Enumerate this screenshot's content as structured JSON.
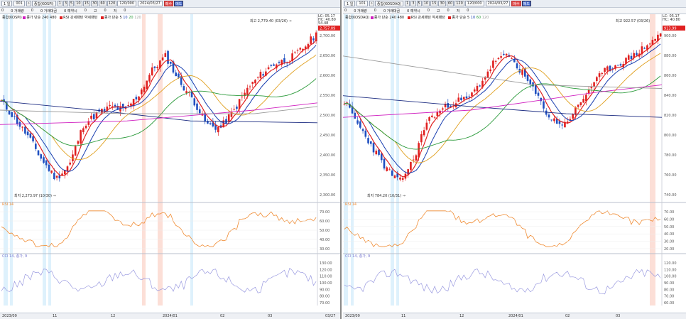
{
  "left": {
    "toolbar": {
      "period": "1 일",
      "code": "001",
      "name": "종합(KOSPI)",
      "periods": [
        "1",
        "3",
        "5",
        "10",
        "15",
        "30",
        "60",
        "120"
      ],
      "count": "120/000",
      "date": "2024/03/27",
      "buy": "매수",
      "sell": "매도"
    },
    "infobar": [
      "0",
      "0 거래량",
      "0",
      "0 거래대금",
      "0 예약시",
      "0",
      "고",
      "0",
      "저",
      "0"
    ],
    "legend_price": [
      "종합(KOSPI)",
      "종가 단순 240",
      "480",
      "RSI 강세패턴",
      "약세패턴",
      "종가 단순 5",
      "10",
      "20",
      "120"
    ],
    "legend_rsi": "RSI 14",
    "legend_cci": "CCI 14, 종가, 9",
    "high_label": "최고 2,779.40 (03/26) →",
    "low_label": "최저 2,273.97 (10/30) →",
    "last_price": "2,757.09",
    "top_right": [
      "LC: 05.17",
      "HC: 40.80",
      "54.48"
    ],
    "price_ticks": [
      "2,700.00",
      "2,650.00",
      "2,600.00",
      "2,550.00",
      "2,500.00",
      "2,450.00",
      "2,400.00",
      "2,350.00",
      "2,300.00"
    ],
    "rsi_ticks": [
      "70.00",
      "60.00",
      "50.00",
      "40.00",
      "30.00"
    ],
    "cci_ticks": [
      "130.00",
      "120.00",
      "110.00",
      "100.00",
      "90.00",
      "80.00",
      "70.00"
    ],
    "date_labels": [
      "2023/09",
      "11",
      "12",
      "2024/01",
      "02",
      "03",
      "03/27"
    ]
  },
  "right": {
    "toolbar": {
      "period": "1 일",
      "code": "101",
      "name": "종합(KOSDAQ)",
      "periods": [
        "1",
        "3",
        "5",
        "10",
        "15",
        "30",
        "60",
        "120"
      ],
      "count": "120/000",
      "date": "2024/03/27",
      "buy": "매수",
      "sell": "매도"
    },
    "infobar": [
      "0",
      "0 거래량",
      "0",
      "0 거래대금",
      "0 예약시",
      "0",
      "고",
      "0",
      "저",
      "0"
    ],
    "legend_price": [
      "종합(KOSDAQ)",
      "종가 단순 240",
      "480",
      "RSI 강세패턴",
      "약세패턴",
      "종가 단순 5",
      "10",
      "60",
      "120"
    ],
    "legend_rsi": "RSI 14",
    "legend_cci": "CCI 14, 종가, 9",
    "high_label": "최고 922.57 (03/26)",
    "low_label": "최저 784.20 (10/31) →",
    "last_price": "913.99",
    "top_right": [
      "LC: 05.17",
      "HC: 40.80"
    ],
    "price_ticks": [
      "900.00",
      "880.00",
      "860.00",
      "840.00",
      "820.00",
      "800.00",
      "780.00",
      "760.00",
      "740.00"
    ],
    "rsi_ticks": [
      "70.00",
      "60.00",
      "50.00",
      "40.00",
      "30.00",
      "20.00"
    ],
    "cci_ticks": [
      "120.00",
      "110.00",
      "100.00",
      "90.00",
      "80.00",
      "70.00",
      "60.00"
    ],
    "date_labels": [
      "2023/09",
      "11",
      "12",
      "2024/01",
      "02",
      "03"
    ]
  },
  "colors": {
    "up": "#e02020",
    "down": "#1f4fc0",
    "ma5": "#e02020",
    "ma10": "#1a3fb0",
    "ma20": "#e0a020",
    "ma60": "#2a9a3a",
    "ma120": "#999999",
    "ma240": "#d020c0",
    "ma480": "#1a2a80",
    "rsi": "#f08a30",
    "cci": "#9a9ae0",
    "highlight_blue": "#d8eefc",
    "highlight_red": "#fbd9d0"
  }
}
